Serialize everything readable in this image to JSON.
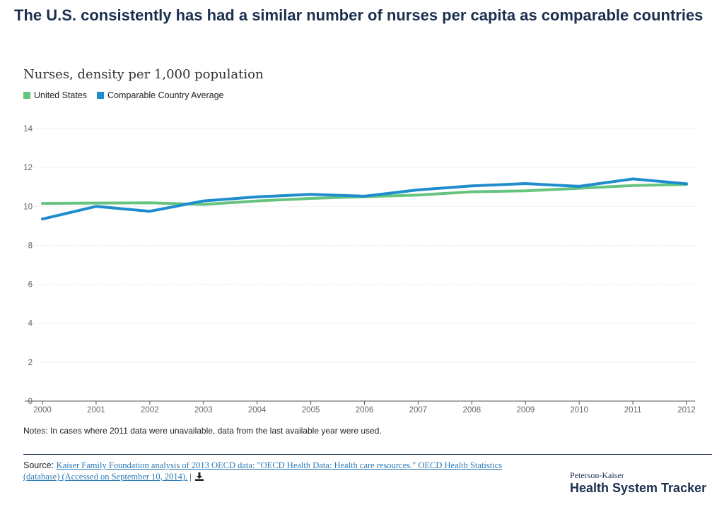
{
  "headline": "The U.S. consistently has had a similar number of nurses per capita as comparable countries",
  "colors": {
    "us": "#66c47e",
    "comparable": "#1f8ccd",
    "grid": "#e3e3e3",
    "axis": "#555555",
    "headline": "#1b2f4f"
  },
  "chart_data": {
    "type": "line",
    "title": "Nurses, density per 1,000 population",
    "xlabel": "",
    "ylabel": "",
    "x": [
      "2000",
      "2001",
      "2002",
      "2003",
      "2004",
      "2005",
      "2006",
      "2007",
      "2008",
      "2009",
      "2010",
      "2011",
      "2012"
    ],
    "ylim": [
      0,
      14
    ],
    "yticks": [
      0,
      2,
      4,
      6,
      8,
      10,
      12,
      14
    ],
    "grid": true,
    "legend_position": "top-left",
    "series": [
      {
        "name": "United States",
        "color": "#66c47e",
        "values": [
          10.15,
          10.17,
          10.18,
          10.1,
          10.28,
          10.41,
          10.5,
          10.58,
          10.75,
          10.8,
          10.93,
          11.07,
          11.13
        ]
      },
      {
        "name": "Comparable Country Average",
        "color": "#1f8ccd",
        "values": [
          9.35,
          10.0,
          9.75,
          10.28,
          10.49,
          10.62,
          10.52,
          10.85,
          11.05,
          11.17,
          11.03,
          11.41,
          11.16
        ]
      }
    ]
  },
  "notes": "Notes: In cases where 2011 data were unavailable, data from the last available year were used.",
  "source": {
    "prefix": "Source: ",
    "link_text": "Kaiser Family Foundation analysis of 2013 OECD data: \"OECD Health Data: Health care resources.\" OECD Health Statistics (database) (Accessed on September 10, 2014).",
    "separator": " |"
  },
  "brand": {
    "small": "Peterson-Kaiser",
    "large": "Health System Tracker"
  }
}
